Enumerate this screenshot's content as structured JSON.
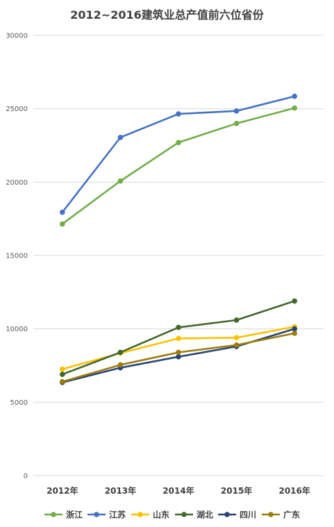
{
  "chart_data": {
    "type": "line",
    "title": "2012~2016建筑业总产值前六位省份",
    "categories": [
      "2012年",
      "2013年",
      "2014年",
      "2015年",
      "2016年"
    ],
    "ylim": [
      0,
      30000
    ],
    "yticks": [
      "0",
      "5000",
      "10000",
      "15000",
      "20000",
      "25000",
      "30000"
    ],
    "grid": true,
    "legend_position": "bottom",
    "series": [
      {
        "name": "浙江",
        "color": "#70AD47",
        "values": [
          17150,
          20080,
          22700,
          24000,
          25050
        ]
      },
      {
        "name": "江苏",
        "color": "#4472C4",
        "values": [
          17950,
          23050,
          24650,
          24850,
          25850
        ]
      },
      {
        "name": "山东",
        "color": "#FFC000",
        "values": [
          7250,
          8350,
          9350,
          9400,
          10150
        ]
      },
      {
        "name": "湖北",
        "color": "#43682B",
        "values": [
          6900,
          8400,
          10100,
          10600,
          11900
        ]
      },
      {
        "name": "四川",
        "color": "#264478",
        "values": [
          6350,
          7350,
          8100,
          8800,
          10000
        ]
      },
      {
        "name": "广东",
        "color": "#9E7C0C",
        "values": [
          6400,
          7550,
          8400,
          8900,
          9700
        ]
      }
    ]
  }
}
